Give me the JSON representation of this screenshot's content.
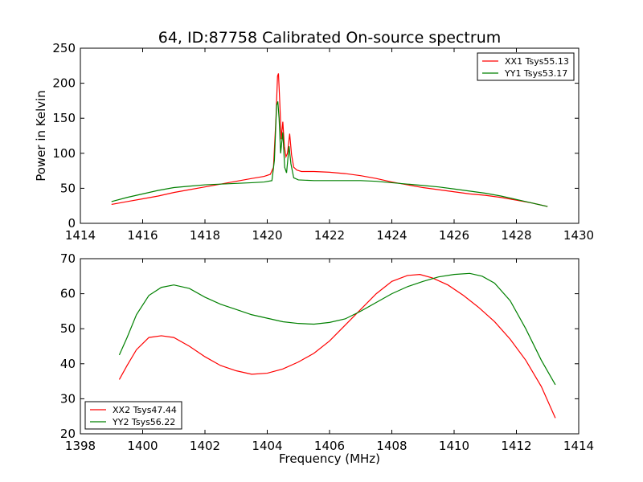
{
  "chart_data": [
    {
      "type": "line",
      "title": "64, ID:87758 Calibrated On-source spectrum",
      "xlabel": "",
      "ylabel": "Power in Kelvin",
      "xlim": [
        1414,
        1430
      ],
      "ylim": [
        0,
        250
      ],
      "xticks": [
        "1414",
        "1416",
        "1418",
        "1420",
        "1422",
        "1424",
        "1426",
        "1428",
        "1430"
      ],
      "yticks": [
        "0",
        "50",
        "100",
        "150",
        "200",
        "250"
      ],
      "legend_position": "top-right",
      "grid": false,
      "series": [
        {
          "name": "XX1 Tsys55.13",
          "color": "#ff0000",
          "points": [
            [
              1415,
              27
            ],
            [
              1415.5,
              31
            ],
            [
              1416,
              35
            ],
            [
              1416.5,
              39
            ],
            [
              1417,
              44
            ],
            [
              1417.5,
              48
            ],
            [
              1418,
              52
            ],
            [
              1418.5,
              56
            ],
            [
              1419,
              60
            ],
            [
              1419.5,
              64
            ],
            [
              1419.9,
              67
            ],
            [
              1420.1,
              70
            ],
            [
              1420.2,
              80
            ],
            [
              1420.28,
              150
            ],
            [
              1420.33,
              210
            ],
            [
              1420.36,
              214
            ],
            [
              1420.4,
              175
            ],
            [
              1420.45,
              120
            ],
            [
              1420.5,
              145
            ],
            [
              1420.55,
              110
            ],
            [
              1420.6,
              95
            ],
            [
              1420.65,
              100
            ],
            [
              1420.72,
              128
            ],
            [
              1420.78,
              98
            ],
            [
              1420.85,
              80
            ],
            [
              1420.95,
              76
            ],
            [
              1421.1,
              74
            ],
            [
              1421.5,
              74
            ],
            [
              1422,
              73
            ],
            [
              1422.5,
              71
            ],
            [
              1423,
              68
            ],
            [
              1423.5,
              64
            ],
            [
              1424,
              59
            ],
            [
              1424.5,
              55
            ],
            [
              1425,
              51
            ],
            [
              1425.5,
              48
            ],
            [
              1426,
              45
            ],
            [
              1426.5,
              42
            ],
            [
              1427,
              40
            ],
            [
              1427.5,
              37
            ],
            [
              1428,
              33
            ],
            [
              1428.5,
              29
            ],
            [
              1429,
              24
            ]
          ]
        },
        {
          "name": "YY1 Tsys53.17",
          "color": "#008000",
          "points": [
            [
              1415,
              31
            ],
            [
              1415.5,
              37
            ],
            [
              1416,
              42
            ],
            [
              1416.5,
              47
            ],
            [
              1417,
              51
            ],
            [
              1417.5,
              53
            ],
            [
              1418,
              55
            ],
            [
              1418.5,
              56
            ],
            [
              1419,
              57
            ],
            [
              1419.5,
              58
            ],
            [
              1419.9,
              59
            ],
            [
              1420.15,
              61
            ],
            [
              1420.23,
              90
            ],
            [
              1420.3,
              168
            ],
            [
              1420.34,
              174
            ],
            [
              1420.38,
              150
            ],
            [
              1420.43,
              100
            ],
            [
              1420.5,
              130
            ],
            [
              1420.56,
              80
            ],
            [
              1420.62,
              72
            ],
            [
              1420.7,
              110
            ],
            [
              1420.76,
              85
            ],
            [
              1420.85,
              65
            ],
            [
              1421,
              62
            ],
            [
              1421.5,
              61
            ],
            [
              1422,
              61
            ],
            [
              1422.5,
              61
            ],
            [
              1423,
              61
            ],
            [
              1423.5,
              60
            ],
            [
              1424,
              58
            ],
            [
              1424.5,
              56
            ],
            [
              1425,
              54
            ],
            [
              1425.5,
              52
            ],
            [
              1426,
              49
            ],
            [
              1426.5,
              46
            ],
            [
              1427,
              43
            ],
            [
              1427.5,
              39
            ],
            [
              1428,
              34
            ],
            [
              1428.5,
              29
            ],
            [
              1429,
              24
            ]
          ]
        }
      ]
    },
    {
      "type": "line",
      "title": "",
      "xlabel": "Frequency (MHz)",
      "ylabel": "",
      "xlim": [
        1398,
        1414
      ],
      "ylim": [
        20,
        70
      ],
      "xticks": [
        "1398",
        "1400",
        "1402",
        "1404",
        "1406",
        "1408",
        "1410",
        "1412",
        "1414"
      ],
      "yticks": [
        "20",
        "30",
        "40",
        "50",
        "60",
        "70"
      ],
      "legend_position": "bottom-left",
      "grid": false,
      "series": [
        {
          "name": "XX2 Tsys47.44",
          "color": "#ff0000",
          "points": [
            [
              1399.25,
              35.5
            ],
            [
              1399.5,
              39.5
            ],
            [
              1399.8,
              44
            ],
            [
              1400.2,
              47.5
            ],
            [
              1400.6,
              48
            ],
            [
              1401,
              47.5
            ],
            [
              1401.5,
              45
            ],
            [
              1402,
              42
            ],
            [
              1402.5,
              39.5
            ],
            [
              1403,
              38
            ],
            [
              1403.5,
              37
            ],
            [
              1404,
              37.3
            ],
            [
              1404.5,
              38.5
            ],
            [
              1405,
              40.5
            ],
            [
              1405.5,
              43
            ],
            [
              1406,
              46.5
            ],
            [
              1406.5,
              51
            ],
            [
              1407,
              55.5
            ],
            [
              1407.5,
              60
            ],
            [
              1408,
              63.5
            ],
            [
              1408.5,
              65.2
            ],
            [
              1408.9,
              65.5
            ],
            [
              1409.3,
              64.5
            ],
            [
              1409.8,
              62.5
            ],
            [
              1410.3,
              59.5
            ],
            [
              1410.8,
              56
            ],
            [
              1411.3,
              52
            ],
            [
              1411.8,
              47
            ],
            [
              1412.3,
              41
            ],
            [
              1412.8,
              33.5
            ],
            [
              1413.25,
              24.5
            ]
          ]
        },
        {
          "name": "YY2 Tsys56.22",
          "color": "#008000",
          "points": [
            [
              1399.25,
              42.5
            ],
            [
              1399.5,
              47.5
            ],
            [
              1399.8,
              54
            ],
            [
              1400.2,
              59.5
            ],
            [
              1400.6,
              61.8
            ],
            [
              1401,
              62.5
            ],
            [
              1401.5,
              61.5
            ],
            [
              1402,
              59
            ],
            [
              1402.5,
              57
            ],
            [
              1403,
              55.5
            ],
            [
              1403.5,
              54
            ],
            [
              1404,
              53
            ],
            [
              1404.5,
              52
            ],
            [
              1405,
              51.5
            ],
            [
              1405.5,
              51.3
            ],
            [
              1406,
              51.8
            ],
            [
              1406.5,
              52.8
            ],
            [
              1407,
              55
            ],
            [
              1407.5,
              57.5
            ],
            [
              1408,
              60
            ],
            [
              1408.5,
              62
            ],
            [
              1409,
              63.5
            ],
            [
              1409.5,
              64.8
            ],
            [
              1410,
              65.5
            ],
            [
              1410.5,
              65.8
            ],
            [
              1410.9,
              65
            ],
            [
              1411.3,
              63
            ],
            [
              1411.8,
              58
            ],
            [
              1412.3,
              50
            ],
            [
              1412.8,
              41
            ],
            [
              1413.25,
              34
            ]
          ]
        }
      ]
    }
  ]
}
